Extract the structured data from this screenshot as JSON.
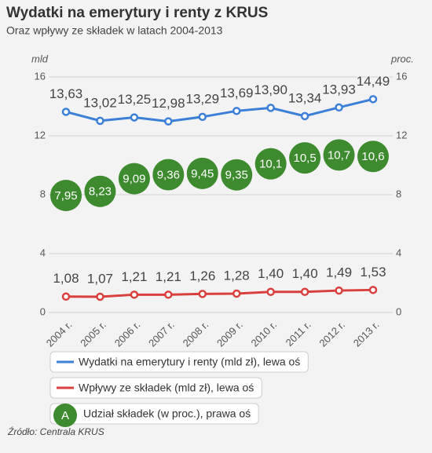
{
  "chart_data": {
    "type": "line",
    "title": "Wydatki na emerytury i renty z KRUS",
    "subtitle": "Oraz wpływy ze składek w latach 2004-2013",
    "y_label": "mld",
    "y2_label": "proc.",
    "categories": [
      "2004 r.",
      "2005 r.",
      "2006 r.",
      "2007 r.",
      "2008 r.",
      "2009 r.",
      "2010 r.",
      "2011 r.",
      "2012 r.",
      "2013 r."
    ],
    "ylim": [
      0,
      16
    ],
    "yticks": [
      0,
      4,
      8,
      12,
      16
    ],
    "y2lim": [
      0,
      16
    ],
    "y2ticks": [
      0,
      4,
      8,
      12,
      16
    ],
    "grid": true,
    "series": [
      {
        "name": "Wydatki na emerytury i renty (mld zł), lewa oś",
        "color": "#3b7fd6",
        "marks": "line",
        "values": [
          13.63,
          13.02,
          13.25,
          12.98,
          13.29,
          13.69,
          13.9,
          13.34,
          13.93,
          14.49
        ],
        "value_labels": [
          "13,63",
          "13,02",
          "13,25",
          "12,98",
          "13,29",
          "13,69",
          "13,90",
          "13,34",
          "13,93",
          "14,49"
        ]
      },
      {
        "name": "Wpływy ze składek (mld zł), lewa oś",
        "color": "#d8403e",
        "marks": "line",
        "values": [
          1.08,
          1.07,
          1.21,
          1.21,
          1.26,
          1.28,
          1.4,
          1.4,
          1.49,
          1.53
        ],
        "value_labels": [
          "1,08",
          "1,07",
          "1,21",
          "1,21",
          "1,26",
          "1,28",
          "1,40",
          "1,40",
          "1,49",
          "1,53"
        ]
      },
      {
        "name": "Udział składek (w proc.), prawa oś",
        "color": "#3e8a2f",
        "marks": "bubble",
        "axis": "y2",
        "legend_marker": "A",
        "values": [
          7.95,
          8.23,
          9.09,
          9.36,
          9.45,
          9.35,
          10.1,
          10.5,
          10.7,
          10.6
        ],
        "value_labels": [
          "7,95",
          "8,23",
          "9,09",
          "9,36",
          "9,45",
          "9,35",
          "10,1",
          "10,5",
          "10,7",
          "10,6"
        ]
      }
    ],
    "source": "Źródło: Centrala KRUS"
  }
}
